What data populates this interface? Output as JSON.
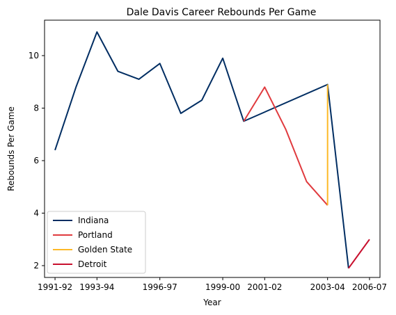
{
  "chart_data": {
    "type": "line",
    "title": "Dale Davis  Career Rebounds Per Game",
    "xlabel": "Year",
    "ylabel": "Rebounds Per Game",
    "x_ticks": [
      "1991-92",
      "1993-94",
      "1996-97",
      "1999-00",
      "2001-02",
      "2003-04",
      "2006-07"
    ],
    "x_tick_positions": [
      0,
      2,
      5,
      8,
      10,
      13,
      15
    ],
    "y_ticks": [
      2,
      4,
      6,
      8,
      10
    ],
    "xlim": [
      -0.5,
      15.5
    ],
    "ylim": [
      1.55,
      11.35
    ],
    "grid": false,
    "legend_placement": "lower-left",
    "series": [
      {
        "name": "Indiana",
        "color": "#002D62",
        "points": [
          [
            0,
            6.4
          ],
          [
            1,
            8.8
          ],
          [
            2,
            10.9
          ],
          [
            3,
            9.4
          ],
          [
            4,
            9.1
          ],
          [
            5,
            9.7
          ],
          [
            6,
            7.8
          ],
          [
            7,
            8.3
          ],
          [
            8,
            9.9
          ],
          [
            9,
            7.5
          ],
          [
            13,
            8.9
          ],
          [
            14,
            1.9
          ]
        ]
      },
      {
        "name": "Portland",
        "color": "#E03A3E",
        "points": [
          [
            9,
            7.5
          ],
          [
            10,
            8.8
          ],
          [
            11,
            7.2
          ],
          [
            12,
            5.2
          ],
          [
            13,
            4.3
          ]
        ]
      },
      {
        "name": "Golden State",
        "color": "#FDB927",
        "points": [
          [
            13,
            4.3
          ],
          [
            13,
            8.9
          ]
        ]
      },
      {
        "name": "Detroit",
        "color": "#C8102E",
        "points": [
          [
            14,
            1.9
          ],
          [
            15,
            3.0
          ]
        ]
      }
    ]
  }
}
